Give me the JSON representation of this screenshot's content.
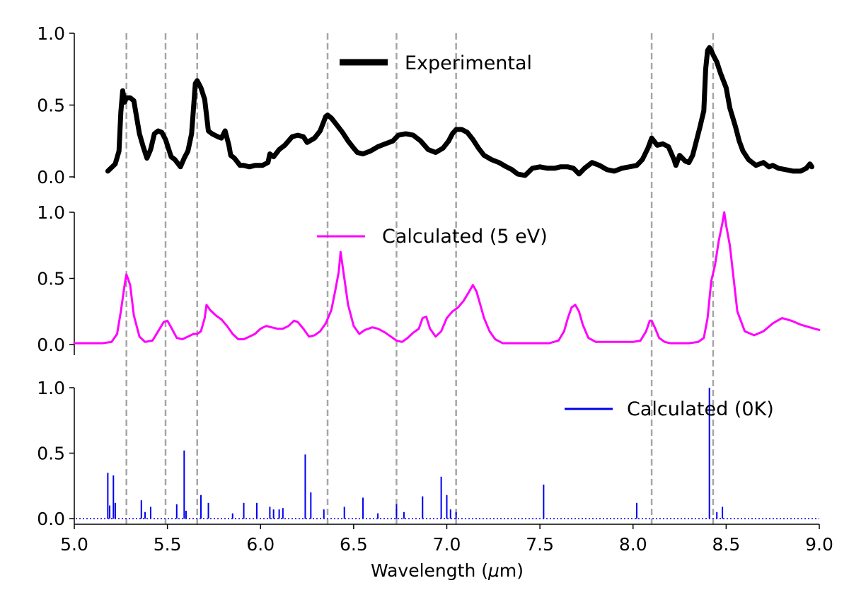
{
  "chart_data": {
    "type": "line",
    "xlabel_prefix": "Wavelength (",
    "xlabel_mu": "μ",
    "xlabel_suffix": "m)",
    "xlim": [
      5.0,
      9.0
    ],
    "xticks": [
      "5.0",
      "5.5",
      "6.0",
      "6.5",
      "7.0",
      "7.5",
      "8.0",
      "8.5",
      "9.0"
    ],
    "yticks": [
      "0.0",
      "0.5",
      "1.0"
    ],
    "reference_lines": [
      5.28,
      5.49,
      5.66,
      6.36,
      6.73,
      7.05,
      8.1,
      8.43
    ],
    "panels": [
      {
        "name": "experimental",
        "legend": "Experimental",
        "color": "#000000",
        "ylim": [
          0,
          1.0
        ],
        "x": [
          5.18,
          5.22,
          5.24,
          5.25,
          5.26,
          5.27,
          5.28,
          5.3,
          5.32,
          5.33,
          5.35,
          5.37,
          5.39,
          5.41,
          5.43,
          5.45,
          5.47,
          5.49,
          5.52,
          5.54,
          5.57,
          5.59,
          5.61,
          5.63,
          5.65,
          5.66,
          5.68,
          5.7,
          5.72,
          5.74,
          5.77,
          5.79,
          5.81,
          5.83,
          5.84,
          5.86,
          5.89,
          5.91,
          5.94,
          5.97,
          6.01,
          6.04,
          6.05,
          6.07,
          6.1,
          6.13,
          6.17,
          6.2,
          6.23,
          6.25,
          6.29,
          6.32,
          6.35,
          6.36,
          6.38,
          6.41,
          6.44,
          6.47,
          6.5,
          6.52,
          6.55,
          6.59,
          6.63,
          6.67,
          6.71,
          6.74,
          6.78,
          6.82,
          6.86,
          6.9,
          6.94,
          6.98,
          7.01,
          7.03,
          7.05,
          7.08,
          7.11,
          7.14,
          7.17,
          7.2,
          7.24,
          7.28,
          7.32,
          7.35,
          7.38,
          7.42,
          7.46,
          7.5,
          7.54,
          7.58,
          7.61,
          7.65,
          7.68,
          7.71,
          7.74,
          7.78,
          7.82,
          7.86,
          7.9,
          7.94,
          7.98,
          8.02,
          8.05,
          8.08,
          8.1,
          8.13,
          8.16,
          8.19,
          8.22,
          8.23,
          8.25,
          8.28,
          8.3,
          8.32,
          8.34,
          8.36,
          8.38,
          8.39,
          8.4,
          8.41,
          8.42,
          8.43,
          8.45,
          8.47,
          8.5,
          8.52,
          8.55,
          8.57,
          8.59,
          8.62,
          8.66,
          8.7,
          8.73,
          8.75,
          8.78,
          8.82,
          8.86,
          8.9,
          8.93,
          8.95,
          8.96
        ],
        "y": [
          0.04,
          0.09,
          0.18,
          0.45,
          0.6,
          0.52,
          0.55,
          0.55,
          0.53,
          0.45,
          0.3,
          0.21,
          0.13,
          0.19,
          0.3,
          0.32,
          0.31,
          0.26,
          0.14,
          0.12,
          0.07,
          0.13,
          0.18,
          0.3,
          0.65,
          0.67,
          0.62,
          0.54,
          0.32,
          0.3,
          0.28,
          0.27,
          0.32,
          0.22,
          0.15,
          0.13,
          0.08,
          0.08,
          0.07,
          0.08,
          0.08,
          0.1,
          0.16,
          0.14,
          0.19,
          0.22,
          0.28,
          0.29,
          0.28,
          0.24,
          0.27,
          0.32,
          0.42,
          0.43,
          0.41,
          0.36,
          0.31,
          0.25,
          0.2,
          0.17,
          0.16,
          0.18,
          0.21,
          0.23,
          0.25,
          0.29,
          0.3,
          0.29,
          0.25,
          0.19,
          0.17,
          0.2,
          0.25,
          0.3,
          0.33,
          0.33,
          0.31,
          0.26,
          0.2,
          0.15,
          0.12,
          0.1,
          0.07,
          0.05,
          0.02,
          0.01,
          0.06,
          0.07,
          0.06,
          0.06,
          0.07,
          0.07,
          0.06,
          0.02,
          0.06,
          0.1,
          0.08,
          0.05,
          0.04,
          0.06,
          0.07,
          0.08,
          0.12,
          0.2,
          0.27,
          0.22,
          0.23,
          0.21,
          0.12,
          0.08,
          0.15,
          0.11,
          0.1,
          0.15,
          0.25,
          0.35,
          0.46,
          0.75,
          0.88,
          0.9,
          0.88,
          0.85,
          0.8,
          0.72,
          0.62,
          0.48,
          0.35,
          0.25,
          0.18,
          0.12,
          0.08,
          0.1,
          0.07,
          0.08,
          0.06,
          0.05,
          0.04,
          0.04,
          0.06,
          0.09,
          0.07
        ]
      },
      {
        "name": "calculated-5ev",
        "legend": "Calculated (5 eV)",
        "color": "#ff00ff",
        "ylim": [
          0,
          1.0
        ],
        "x": [
          5.0,
          5.05,
          5.1,
          5.15,
          5.2,
          5.23,
          5.25,
          5.27,
          5.28,
          5.3,
          5.32,
          5.35,
          5.38,
          5.42,
          5.45,
          5.48,
          5.5,
          5.52,
          5.55,
          5.58,
          5.61,
          5.64,
          5.66,
          5.68,
          5.7,
          5.71,
          5.73,
          5.76,
          5.79,
          5.82,
          5.85,
          5.88,
          5.91,
          5.94,
          5.97,
          6.0,
          6.03,
          6.06,
          6.09,
          6.12,
          6.15,
          6.18,
          6.2,
          6.23,
          6.26,
          6.29,
          6.32,
          6.35,
          6.38,
          6.4,
          6.42,
          6.43,
          6.45,
          6.47,
          6.5,
          6.53,
          6.56,
          6.6,
          6.63,
          6.67,
          6.7,
          6.73,
          6.76,
          6.79,
          6.82,
          6.85,
          6.87,
          6.89,
          6.91,
          6.94,
          6.97,
          7.0,
          7.03,
          7.06,
          7.09,
          7.12,
          7.14,
          7.16,
          7.18,
          7.2,
          7.23,
          7.26,
          7.3,
          7.35,
          7.4,
          7.45,
          7.5,
          7.55,
          7.6,
          7.63,
          7.65,
          7.67,
          7.69,
          7.71,
          7.73,
          7.76,
          7.8,
          7.85,
          7.9,
          7.95,
          8.0,
          8.04,
          8.07,
          8.09,
          8.1,
          8.12,
          8.14,
          8.17,
          8.2,
          8.25,
          8.3,
          8.35,
          8.38,
          8.4,
          8.42,
          8.44,
          8.46,
          8.48,
          8.49,
          8.5,
          8.52,
          8.54,
          8.56,
          8.6,
          8.65,
          8.7,
          8.75,
          8.8,
          8.85,
          8.9,
          8.95,
          9.0
        ],
        "y": [
          0.01,
          0.01,
          0.01,
          0.01,
          0.02,
          0.08,
          0.25,
          0.45,
          0.53,
          0.45,
          0.22,
          0.06,
          0.02,
          0.03,
          0.1,
          0.17,
          0.18,
          0.13,
          0.05,
          0.04,
          0.06,
          0.08,
          0.08,
          0.1,
          0.2,
          0.3,
          0.26,
          0.22,
          0.19,
          0.14,
          0.08,
          0.04,
          0.04,
          0.06,
          0.08,
          0.12,
          0.14,
          0.13,
          0.12,
          0.12,
          0.14,
          0.18,
          0.17,
          0.12,
          0.06,
          0.07,
          0.1,
          0.16,
          0.26,
          0.4,
          0.55,
          0.7,
          0.5,
          0.3,
          0.14,
          0.08,
          0.11,
          0.13,
          0.12,
          0.09,
          0.06,
          0.03,
          0.02,
          0.05,
          0.09,
          0.12,
          0.2,
          0.21,
          0.12,
          0.06,
          0.1,
          0.2,
          0.25,
          0.28,
          0.33,
          0.4,
          0.45,
          0.4,
          0.3,
          0.2,
          0.1,
          0.04,
          0.01,
          0.01,
          0.01,
          0.01,
          0.01,
          0.01,
          0.03,
          0.1,
          0.2,
          0.28,
          0.3,
          0.25,
          0.15,
          0.05,
          0.02,
          0.02,
          0.02,
          0.02,
          0.02,
          0.03,
          0.1,
          0.18,
          0.18,
          0.12,
          0.05,
          0.02,
          0.01,
          0.01,
          0.01,
          0.02,
          0.05,
          0.2,
          0.48,
          0.6,
          0.78,
          0.92,
          1.0,
          0.9,
          0.75,
          0.5,
          0.25,
          0.1,
          0.07,
          0.1,
          0.16,
          0.2,
          0.18,
          0.15,
          0.13,
          0.11
        ]
      },
      {
        "name": "calculated-0k",
        "legend": "Calculated (0K)",
        "color": "#0000ee",
        "ylim": [
          0,
          1.0
        ],
        "sticks": [
          [
            5.18,
            0.35
          ],
          [
            5.19,
            0.1
          ],
          [
            5.21,
            0.33
          ],
          [
            5.22,
            0.12
          ],
          [
            5.36,
            0.14
          ],
          [
            5.38,
            0.05
          ],
          [
            5.41,
            0.09
          ],
          [
            5.55,
            0.11
          ],
          [
            5.59,
            0.52
          ],
          [
            5.6,
            0.06
          ],
          [
            5.68,
            0.18
          ],
          [
            5.72,
            0.12
          ],
          [
            5.85,
            0.04
          ],
          [
            5.91,
            0.12
          ],
          [
            5.98,
            0.12
          ],
          [
            6.05,
            0.09
          ],
          [
            6.07,
            0.07
          ],
          [
            6.1,
            0.07
          ],
          [
            6.12,
            0.08
          ],
          [
            6.24,
            0.49
          ],
          [
            6.27,
            0.2
          ],
          [
            6.34,
            0.07
          ],
          [
            6.45,
            0.09
          ],
          [
            6.55,
            0.16
          ],
          [
            6.63,
            0.04
          ],
          [
            6.73,
            0.11
          ],
          [
            6.77,
            0.05
          ],
          [
            6.87,
            0.17
          ],
          [
            6.97,
            0.32
          ],
          [
            7.0,
            0.18
          ],
          [
            7.02,
            0.07
          ],
          [
            7.05,
            0.05
          ],
          [
            7.52,
            0.26
          ],
          [
            8.02,
            0.12
          ],
          [
            8.41,
            1.0
          ],
          [
            8.45,
            0.05
          ],
          [
            8.48,
            0.09
          ]
        ]
      }
    ]
  }
}
